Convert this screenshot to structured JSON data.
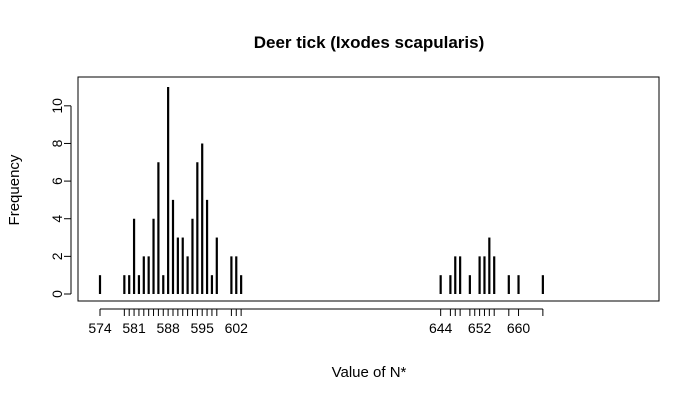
{
  "chart_data": {
    "type": "bar",
    "title": "Deer tick (Ixodes scapularis)",
    "xlabel": "Value of N*",
    "ylabel": "Frequency",
    "xlim": [
      574,
      664
    ],
    "ylim": [
      0,
      11
    ],
    "x_ticks": [
      574,
      581,
      588,
      595,
      602,
      644,
      652,
      660
    ],
    "x_minor_ticks": [
      579,
      580,
      582,
      583,
      584,
      585,
      586,
      587,
      589,
      590,
      591,
      592,
      593,
      594,
      596,
      597,
      598,
      601,
      603,
      646,
      647,
      648,
      650,
      651,
      653,
      654,
      655,
      658,
      665
    ],
    "y_ticks": [
      0,
      2,
      4,
      6,
      8,
      10
    ],
    "grid": false,
    "points": [
      {
        "x": 574,
        "y": 1
      },
      {
        "x": 579,
        "y": 1
      },
      {
        "x": 580,
        "y": 1
      },
      {
        "x": 581,
        "y": 4
      },
      {
        "x": 582,
        "y": 1
      },
      {
        "x": 583,
        "y": 2
      },
      {
        "x": 584,
        "y": 2
      },
      {
        "x": 585,
        "y": 4
      },
      {
        "x": 586,
        "y": 7
      },
      {
        "x": 587,
        "y": 1
      },
      {
        "x": 588,
        "y": 11
      },
      {
        "x": 589,
        "y": 5
      },
      {
        "x": 590,
        "y": 3
      },
      {
        "x": 591,
        "y": 3
      },
      {
        "x": 592,
        "y": 2
      },
      {
        "x": 593,
        "y": 4
      },
      {
        "x": 594,
        "y": 7
      },
      {
        "x": 595,
        "y": 8
      },
      {
        "x": 596,
        "y": 5
      },
      {
        "x": 597,
        "y": 1
      },
      {
        "x": 598,
        "y": 3
      },
      {
        "x": 601,
        "y": 2
      },
      {
        "x": 602,
        "y": 2
      },
      {
        "x": 603,
        "y": 1
      },
      {
        "x": 644,
        "y": 1
      },
      {
        "x": 646,
        "y": 1
      },
      {
        "x": 647,
        "y": 2
      },
      {
        "x": 648,
        "y": 2
      },
      {
        "x": 650,
        "y": 1
      },
      {
        "x": 652,
        "y": 2
      },
      {
        "x": 653,
        "y": 2
      },
      {
        "x": 654,
        "y": 3
      },
      {
        "x": 655,
        "y": 2
      },
      {
        "x": 658,
        "y": 1
      },
      {
        "x": 660,
        "y": 1
      },
      {
        "x": 665,
        "y": 1
      }
    ],
    "colors": {
      "bar": "#000000",
      "axis": "#000000",
      "frame": "#000000",
      "background": "#ffffff"
    }
  }
}
